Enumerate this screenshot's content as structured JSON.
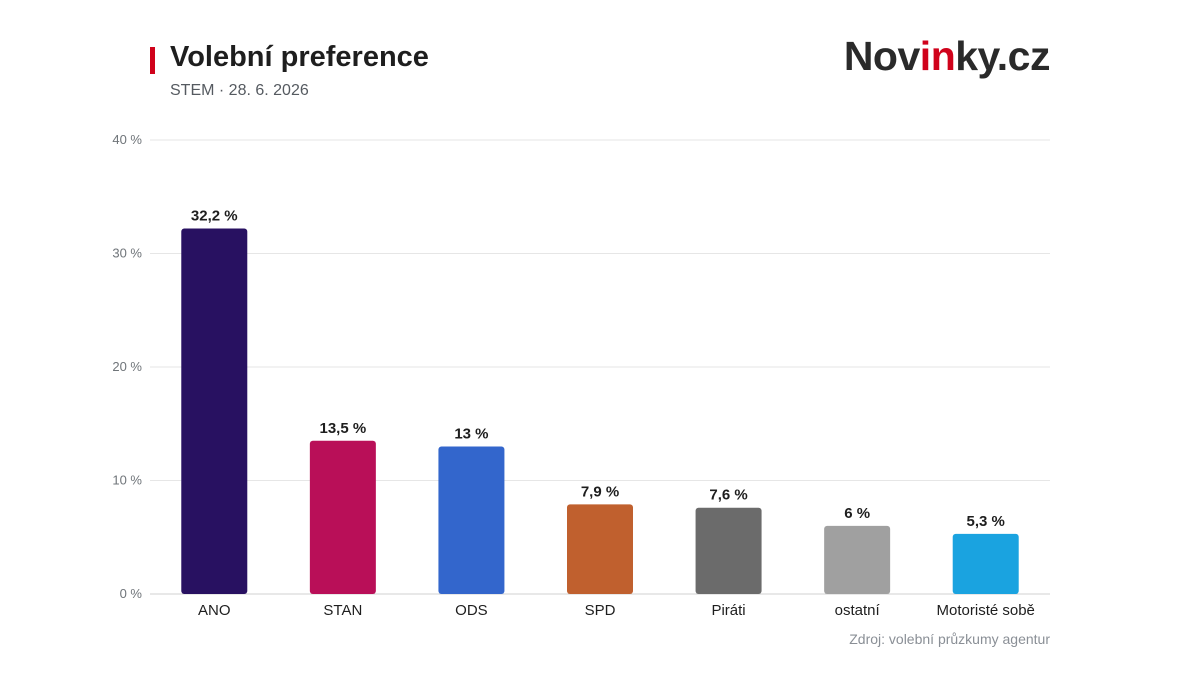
{
  "header": {
    "title": "Volební preference",
    "subtitle": "STEM · 28. 6. 2026"
  },
  "logo": {
    "part1": "Nov",
    "part2": "in",
    "part3": "ky.cz"
  },
  "footer": {
    "source": "Zdroj: volební průzkumy agentur"
  },
  "colors": {
    "accent": "#d0021b",
    "grid": "#e6e6e6",
    "axis": "#d0d0d0"
  },
  "chart_data": {
    "type": "bar",
    "categories": [
      "ANO",
      "STAN",
      "ODS",
      "SPD",
      "Piráti",
      "ostatní",
      "Motoristé sobě"
    ],
    "values": [
      32.2,
      13.5,
      13,
      7.9,
      7.6,
      6,
      5.3
    ],
    "value_labels": [
      "32,2 %",
      "13,5 %",
      "13 %",
      "7,9 %",
      "7,6 %",
      "6 %",
      "5,3 %"
    ],
    "colors": [
      "#281161",
      "#b90f58",
      "#3366cc",
      "#c0602e",
      "#6b6b6b",
      "#a0a0a0",
      "#1aa3e0"
    ],
    "yticks": [
      0,
      10,
      20,
      30,
      40
    ],
    "ytick_labels": [
      "0 %",
      "10 %",
      "20 %",
      "30 %",
      "40 %"
    ],
    "ylim": [
      0,
      40
    ],
    "grid": true,
    "legend": "none"
  }
}
